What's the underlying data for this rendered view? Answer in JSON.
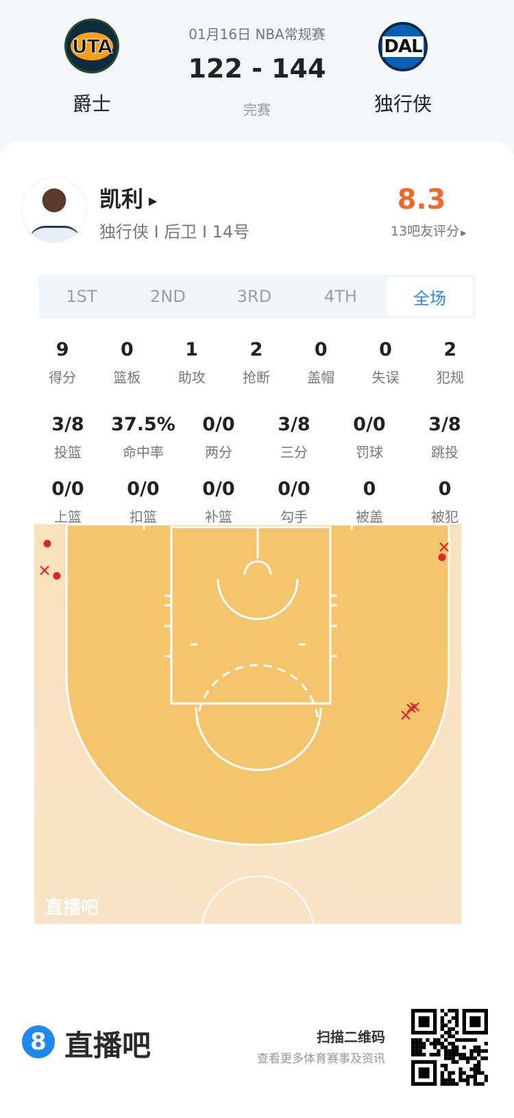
{
  "header": {
    "date_league": "01月16日 NBA常规赛",
    "score": "122 - 144",
    "status": "完赛",
    "home": {
      "abbr": "UTA",
      "name": "爵士",
      "color": "#0e2b3d",
      "accent": "#f9a01b"
    },
    "away": {
      "abbr": "DAL",
      "name": "独行侠",
      "color": "#0a5fb4"
    }
  },
  "player": {
    "name": "凯利",
    "info": "独行侠 I 后卫 I 14号",
    "rating": "8.3",
    "rating_color": "#f0682c",
    "rating_label": "13吧友评分"
  },
  "tabs": [
    {
      "label": "1ST"
    },
    {
      "label": "2ND"
    },
    {
      "label": "3RD"
    },
    {
      "label": "4TH"
    },
    {
      "label": "全场",
      "active": true
    }
  ],
  "stats_rows": [
    [
      {
        "v": "9",
        "l": "得分"
      },
      {
        "v": "0",
        "l": "篮板"
      },
      {
        "v": "1",
        "l": "助攻"
      },
      {
        "v": "2",
        "l": "抢断"
      },
      {
        "v": "0",
        "l": "盖帽"
      },
      {
        "v": "0",
        "l": "失误"
      },
      {
        "v": "2",
        "l": "犯规"
      }
    ],
    [
      {
        "v": "3/8",
        "l": "投篮"
      },
      {
        "v": "37.5%",
        "l": "命中率"
      },
      {
        "v": "0/0",
        "l": "两分"
      },
      {
        "v": "3/8",
        "l": "三分"
      },
      {
        "v": "0/0",
        "l": "罚球"
      },
      {
        "v": "3/8",
        "l": "跳投"
      }
    ],
    [
      {
        "v": "0/0",
        "l": "上篮"
      },
      {
        "v": "0/0",
        "l": "扣篮"
      },
      {
        "v": "0/0",
        "l": "补篮"
      },
      {
        "v": "0/0",
        "l": "勾手"
      },
      {
        "v": "0",
        "l": "被盖"
      },
      {
        "v": "0",
        "l": "被犯"
      }
    ]
  ],
  "shot_chart": {
    "watermark": "直播吧",
    "made_color": "#e0242e",
    "shots": [
      "made",
      "made",
      "made",
      "miss",
      "miss",
      "miss",
      "miss",
      "miss"
    ]
  },
  "footer": {
    "brand": "直播吧",
    "brand_icon": "8",
    "qr_title": "扫描二维码",
    "qr_subtitle": "查看更多体育赛事及资讯",
    "brand_color": "#1e88f0"
  }
}
